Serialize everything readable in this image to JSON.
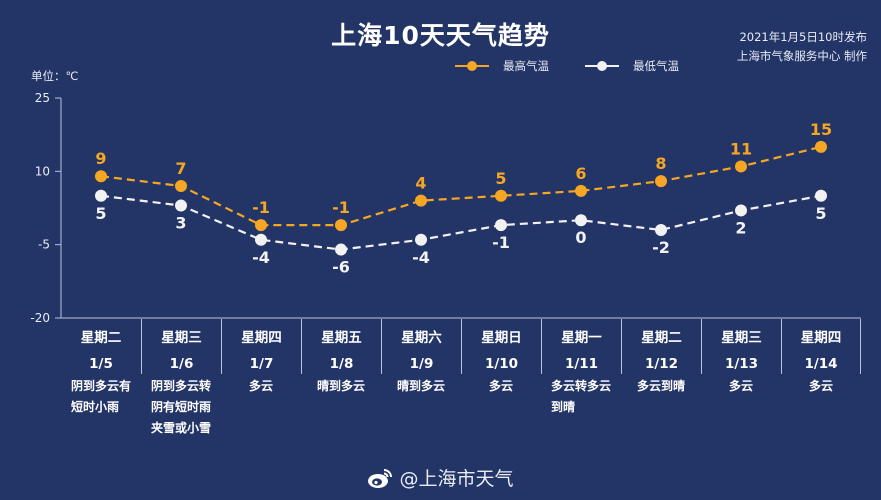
{
  "header": {
    "title": "上海10天天气趋势",
    "publish_time": "2021年1月5日10时发布",
    "producer": "上海市气象服务中心 制作",
    "unit_label": "单位：℃"
  },
  "legend": {
    "high_label": "最高气温",
    "low_label": "最低气温"
  },
  "colors": {
    "background": "#233466",
    "high": "#f5a623",
    "low": "#f2f2f2",
    "axis": "#b9c3dd"
  },
  "chart_data": {
    "type": "line",
    "title": "上海10天天气趋势",
    "ylabel": "单位：℃",
    "xlabel": "",
    "ylim": [
      -20,
      25
    ],
    "yticks": [
      25,
      10,
      -5,
      -20
    ],
    "grid": false,
    "legend_position": "top",
    "categories": [
      "1/5",
      "1/6",
      "1/7",
      "1/8",
      "1/9",
      "1/10",
      "1/11",
      "1/12",
      "1/13",
      "1/14"
    ],
    "weekdays": [
      "星期二",
      "星期三",
      "星期四",
      "星期五",
      "星期六",
      "星期日",
      "星期一",
      "星期二",
      "星期三",
      "星期四"
    ],
    "series": [
      {
        "name": "最高气温",
        "values": [
          9,
          7,
          -1,
          -1,
          4,
          5,
          6,
          8,
          11,
          15
        ],
        "style": "dashed",
        "color": "#f5a623"
      },
      {
        "name": "最低气温",
        "values": [
          5,
          3,
          -4,
          -6,
          -4,
          -1,
          0,
          -2,
          2,
          5
        ],
        "style": "dashed",
        "color": "#f2f2f2"
      }
    ]
  },
  "days": [
    {
      "weekday": "星期二",
      "date": "1/5",
      "weather": [
        "阴到多云有",
        "短时小雨"
      ]
    },
    {
      "weekday": "星期三",
      "date": "1/6",
      "weather": [
        "阴到多云转",
        "阴有短时雨",
        "夹雪或小雪"
      ]
    },
    {
      "weekday": "星期四",
      "date": "1/7",
      "weather": [
        "多云"
      ]
    },
    {
      "weekday": "星期五",
      "date": "1/8",
      "weather": [
        "晴到多云"
      ]
    },
    {
      "weekday": "星期六",
      "date": "1/9",
      "weather": [
        "晴到多云"
      ]
    },
    {
      "weekday": "星期日",
      "date": "1/10",
      "weather": [
        "多云"
      ]
    },
    {
      "weekday": "星期一",
      "date": "1/11",
      "weather": [
        "多云转多云",
        "到晴"
      ]
    },
    {
      "weekday": "星期二",
      "date": "1/12",
      "weather": [
        "多云到晴"
      ]
    },
    {
      "weekday": "星期三",
      "date": "1/13",
      "weather": [
        "多云"
      ]
    },
    {
      "weekday": "星期四",
      "date": "1/14",
      "weather": [
        "多云"
      ]
    }
  ],
  "footer": {
    "icon": "weibo-icon",
    "account": "@上海市天气"
  }
}
